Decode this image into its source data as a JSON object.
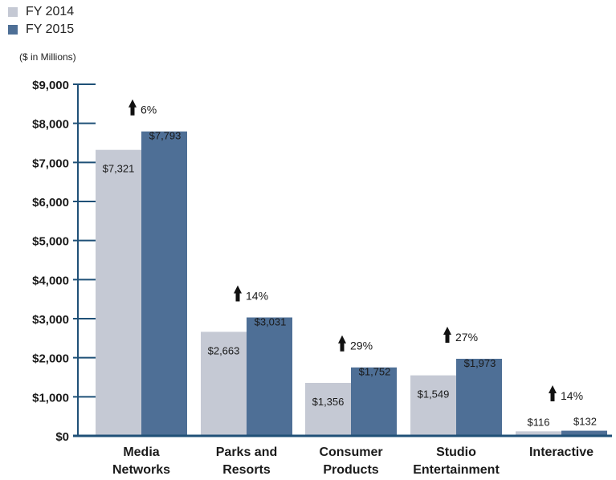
{
  "legend": [
    {
      "label": "FY 2014",
      "color": "#c5c9d4"
    },
    {
      "label": "FY 2015",
      "color": "#4e6f96"
    }
  ],
  "unit_label": "($ in Millions)",
  "chart_data": {
    "type": "bar",
    "title": "",
    "xlabel": "",
    "ylabel": "($ in Millions)",
    "ylim": [
      0,
      9000
    ],
    "yticks": [
      0,
      1000,
      2000,
      3000,
      4000,
      5000,
      6000,
      7000,
      8000,
      9000
    ],
    "ytick_labels": [
      "$0",
      "$1,000",
      "$2,000",
      "$3,000",
      "$4,000",
      "$5,000",
      "$6,000",
      "$7,000",
      "$8,000",
      "$9,000"
    ],
    "categories": [
      [
        "Media",
        "Networks"
      ],
      [
        "Parks and",
        "Resorts"
      ],
      [
        "Consumer",
        "Products"
      ],
      [
        "Studio",
        "Entertainment"
      ],
      [
        "Interactive"
      ]
    ],
    "series": [
      {
        "name": "FY 2014",
        "color": "#c5c9d4",
        "values": [
          7321,
          2663,
          1356,
          1549,
          116
        ],
        "labels": [
          "$7,321",
          "$2,663",
          "$1,356",
          "$1,549",
          "$116"
        ]
      },
      {
        "name": "FY 2015",
        "color": "#4e6f96",
        "values": [
          7793,
          3031,
          1752,
          1973,
          132
        ],
        "labels": [
          "$7,793",
          "$3,031",
          "$1,752",
          "$1,973",
          "$132"
        ]
      }
    ],
    "growth": [
      "6%",
      "14%",
      "29%",
      "27%",
      "14%"
    ],
    "axis_color": "#1f5077"
  }
}
